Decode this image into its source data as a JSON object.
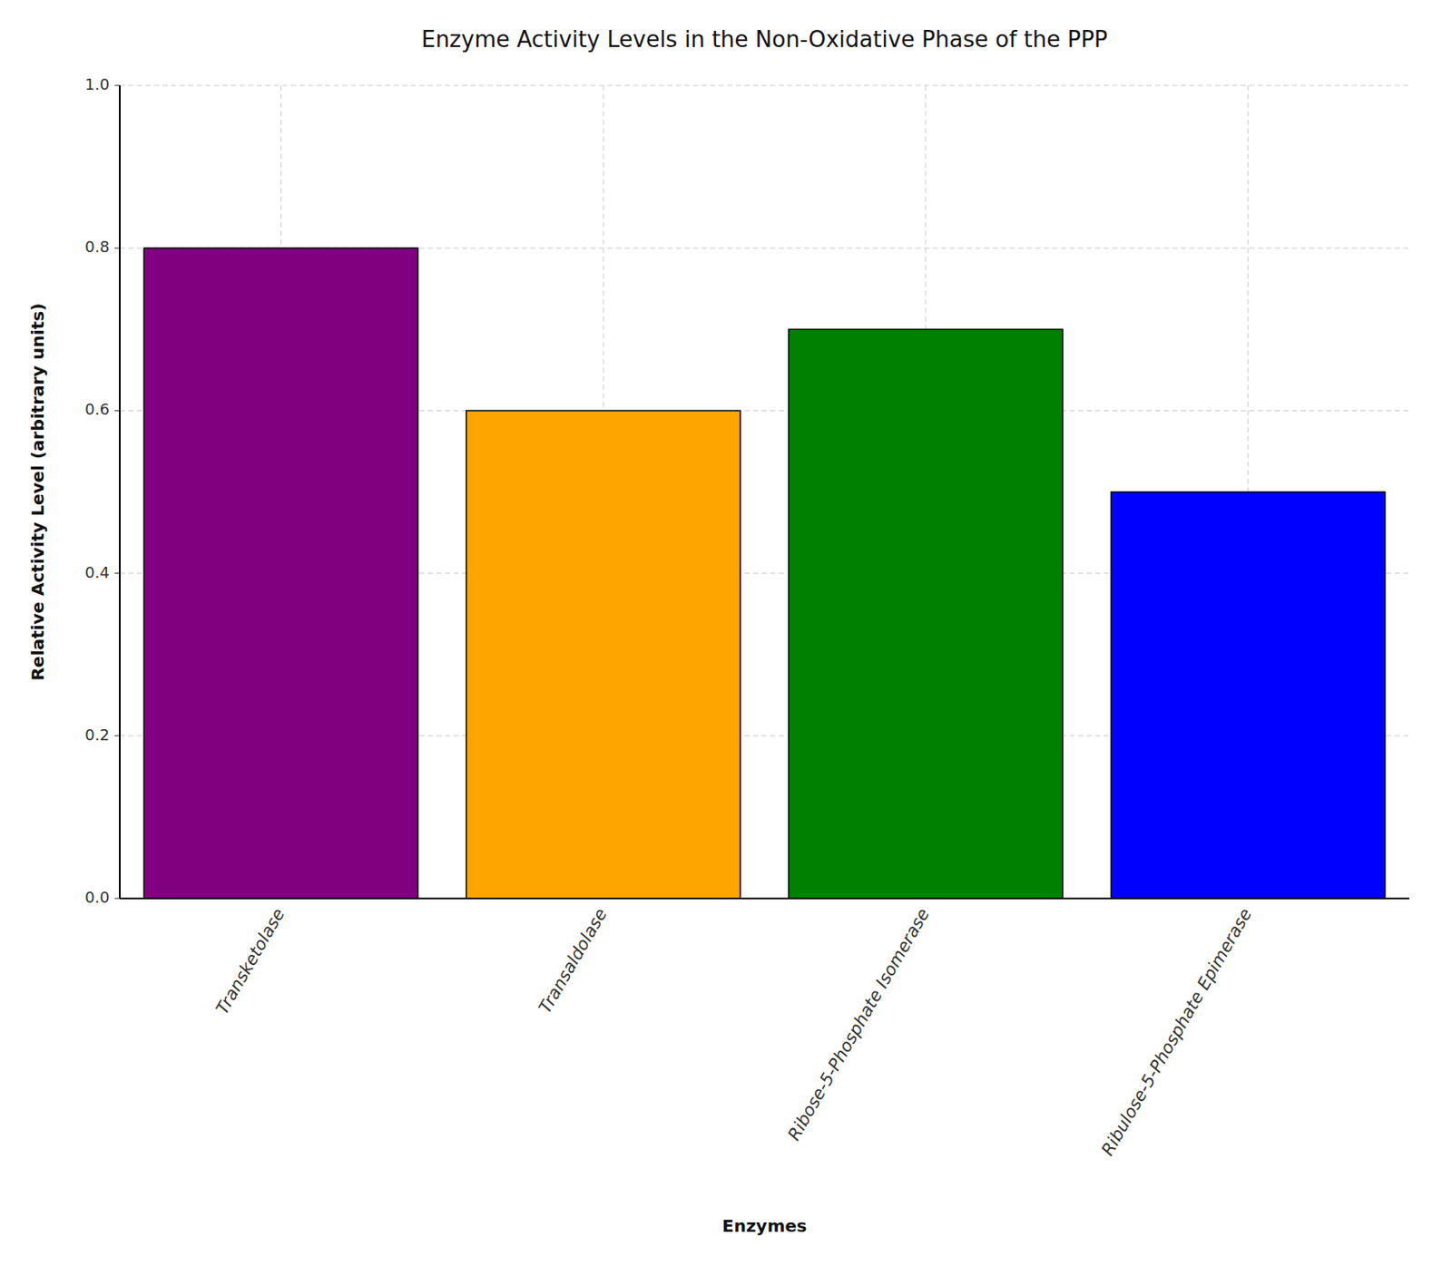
{
  "chart_data": {
    "type": "bar",
    "title": "Enzyme Activity Levels in the Non-Oxidative Phase of the PPP",
    "xlabel": "Enzymes",
    "ylabel": "Relative Activity Level (arbitrary units)",
    "categories": [
      "Transketolase",
      "Transaldolase",
      "Ribose-5-Phosphate Isomerase",
      "Ribulose-5-Phosphate Epimerase"
    ],
    "values": [
      0.8,
      0.6,
      0.7,
      0.5
    ],
    "colors": [
      "#800080",
      "#FFA500",
      "#008000",
      "#0000FF"
    ],
    "ylim": [
      0.0,
      1.0
    ],
    "yticks": [
      {
        "value": 0.0,
        "label": "0.0"
      },
      0.2,
      0.4,
      0.6,
      0.8,
      {
        "value": 1.0,
        "label": "1.0"
      }
    ],
    "grid": true
  }
}
